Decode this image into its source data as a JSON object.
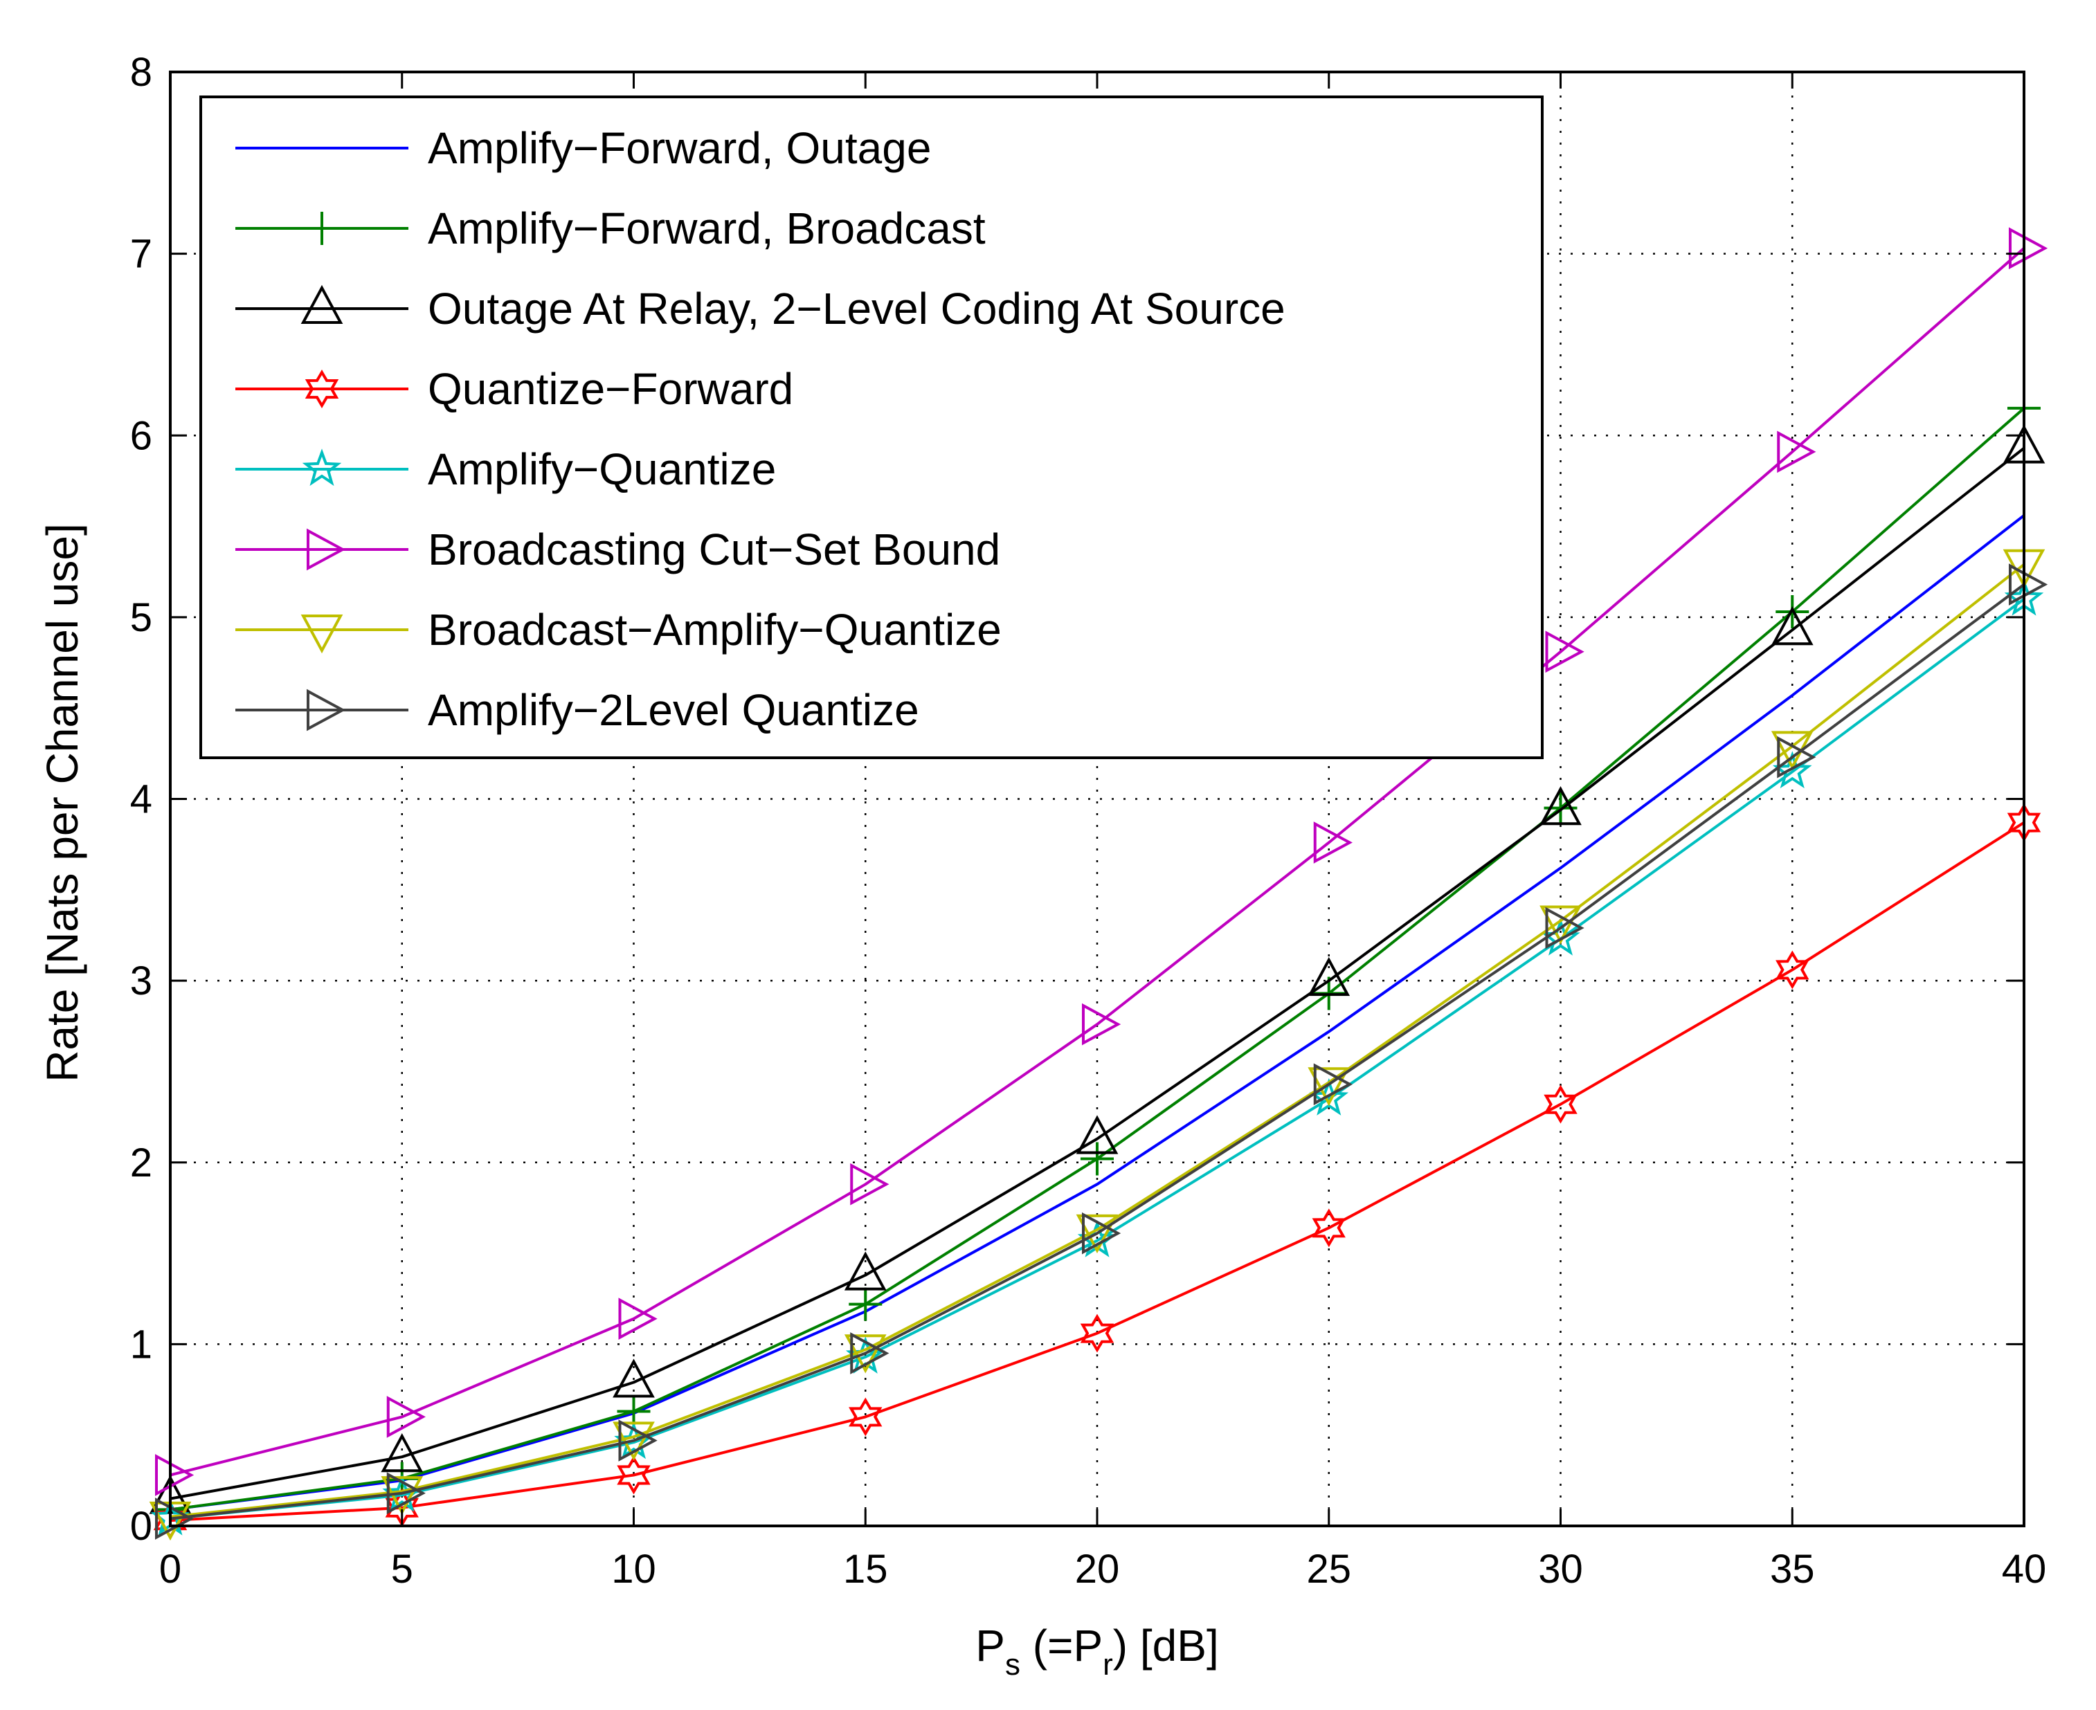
{
  "chart_data": {
    "type": "line",
    "title": "",
    "xlabel": {
      "main": "P",
      "sub1": "s",
      "mid": " (=P",
      "sub2": "r",
      "end": ") [dB]"
    },
    "ylabel": "Rate [Nats per Channel use]",
    "xlim": [
      0,
      40
    ],
    "ylim": [
      0,
      8
    ],
    "xticks": [
      0,
      5,
      10,
      15,
      20,
      25,
      30,
      35,
      40
    ],
    "yticks": [
      0,
      1,
      2,
      3,
      4,
      5,
      6,
      7,
      8
    ],
    "grid": true,
    "legend_position": "top-left",
    "x": [
      0,
      5,
      10,
      15,
      20,
      25,
      30,
      35,
      40
    ],
    "series": [
      {
        "name": "Amplify−Forward, Outage",
        "color": "#0000ff",
        "marker": "none",
        "values": [
          0.09,
          0.25,
          0.62,
          1.18,
          1.88,
          2.72,
          3.62,
          4.57,
          5.56
        ]
      },
      {
        "name": "Amplify−Forward, Broadcast",
        "color": "#008000",
        "marker": "plus",
        "values": [
          0.09,
          0.26,
          0.63,
          1.22,
          2.02,
          2.93,
          3.95,
          5.03,
          6.15
        ]
      },
      {
        "name": "Outage At Relay, 2−Level Coding At Source",
        "color": "#000000",
        "marker": "triangle-up",
        "values": [
          0.15,
          0.38,
          0.79,
          1.38,
          2.13,
          3.0,
          3.94,
          4.93,
          5.93
        ]
      },
      {
        "name": "Quantize−Forward",
        "color": "#ff0000",
        "marker": "hexagram",
        "values": [
          0.03,
          0.1,
          0.28,
          0.6,
          1.06,
          1.64,
          2.32,
          3.06,
          3.87
        ]
      },
      {
        "name": "Amplify−Quantize",
        "color": "#00bfbf",
        "marker": "pentagram",
        "values": [
          0.04,
          0.17,
          0.46,
          0.93,
          1.57,
          2.35,
          3.23,
          4.15,
          5.1
        ]
      },
      {
        "name": "Broadcasting Cut−Set Bound",
        "color": "#bf00bf",
        "marker": "triangle-right",
        "values": [
          0.28,
          0.6,
          1.14,
          1.88,
          2.76,
          3.76,
          4.81,
          5.91,
          7.03
        ]
      },
      {
        "name": "Broadcast−Amplify−Quantize",
        "color": "#bfbf00",
        "marker": "triangle-down",
        "values": [
          0.05,
          0.19,
          0.49,
          0.97,
          1.63,
          2.44,
          3.33,
          4.29,
          5.29
        ]
      },
      {
        "name": "Amplify−2Level Quantize",
        "color": "#404040",
        "marker": "triangle-right",
        "values": [
          0.04,
          0.18,
          0.47,
          0.95,
          1.61,
          2.43,
          3.29,
          4.23,
          5.18
        ]
      }
    ]
  }
}
